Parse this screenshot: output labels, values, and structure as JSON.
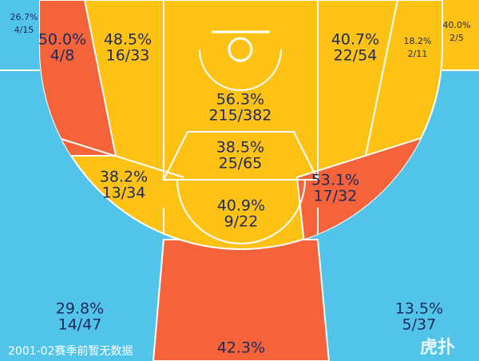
{
  "zones": [
    {
      "pct": "26.7%",
      "shots": "4/15"
    },
    {
      "pct": "50.0%",
      "shots": "4/8"
    },
    {
      "pct": "48.5%",
      "shots": "16/33"
    },
    {
      "pct": "56.3%",
      "shots": "215/382"
    },
    {
      "pct": "38.5%",
      "shots": "25/65"
    },
    {
      "pct": "40.7%",
      "shots": "22/54"
    },
    {
      "pct": "18.2%",
      "shots": "2/11"
    },
    {
      "pct": "40.0%",
      "shots": "2/5"
    },
    {
      "pct": "38.2%",
      "shots": "13/34"
    },
    {
      "pct": "53.1%",
      "shots": "17/32"
    },
    {
      "pct": "40.9%",
      "shots": "9/22"
    },
    {
      "pct": "29.8%",
      "shots": "14/47"
    },
    {
      "pct": "13.5%",
      "shots": "5/37"
    },
    {
      "pct": "42.3%"
    }
  ],
  "note": "2001-02赛季前暂无数据",
  "watermark": "虎扑"
}
